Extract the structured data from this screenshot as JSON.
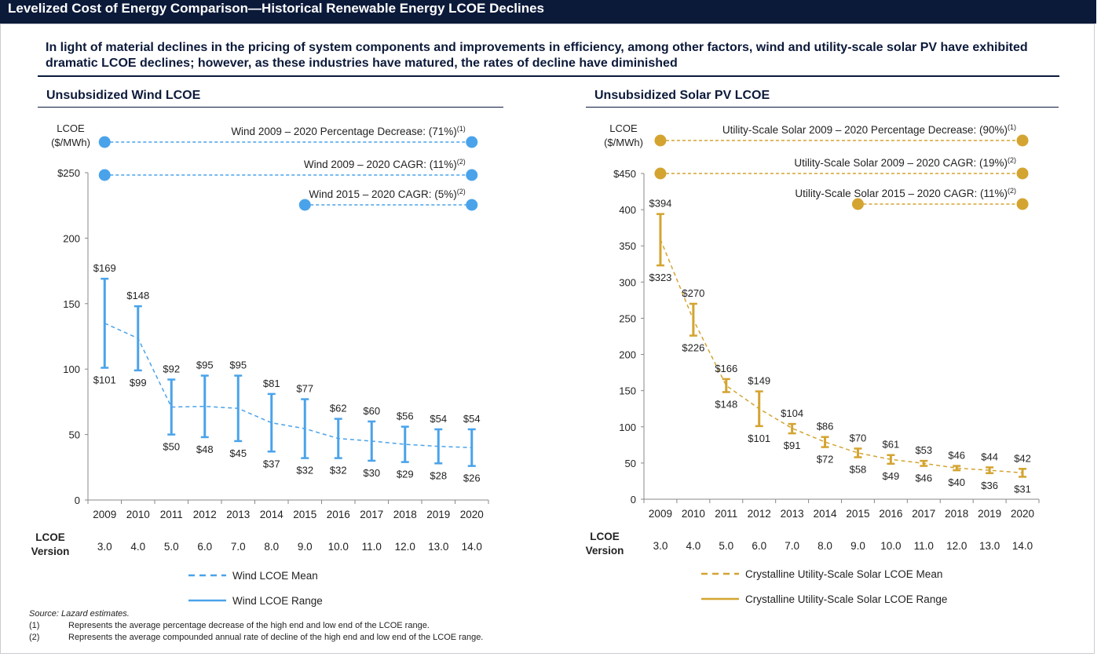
{
  "header": {
    "title": "Levelized Cost of Energy Comparison—Historical Renewable Energy LCOE Declines",
    "headline": "In light of material declines in the pricing of system components and improvements in efficiency, among other factors, wind and utility-scale solar PV have exhibited dramatic LCOE declines; however, as these industries have matured, the rates of decline have diminished"
  },
  "footnotes": {
    "source_label": "Source:",
    "source_text": "Lazard estimates.",
    "items": [
      {
        "num": "(1)",
        "text": "Represents the average percentage decrease of the high end and low end of the LCOE range."
      },
      {
        "num": "(2)",
        "text": "Represents the average compounded annual rate of decline of the high end and low end of the LCOE range."
      }
    ]
  },
  "chart_data": [
    {
      "type": "range-line",
      "section_title": "Unsubsidized Wind LCOE",
      "color": "#4aa3ea",
      "ylabel": "LCOE\n($/MWh)",
      "ylim": [
        0,
        250
      ],
      "yticks": [
        0,
        50,
        100,
        150,
        200,
        250
      ],
      "ytick_labels": [
        "0",
        "50",
        "100",
        "150",
        "200",
        "$250"
      ],
      "categories": [
        "2009",
        "2010",
        "2011",
        "2012",
        "2013",
        "2014",
        "2015",
        "2016",
        "2017",
        "2018",
        "2019",
        "2020"
      ],
      "version_label": "LCOE\nVersion",
      "versions": [
        "3.0",
        "4.0",
        "5.0",
        "6.0",
        "7.0",
        "8.0",
        "9.0",
        "10.0",
        "11.0",
        "12.0",
        "13.0",
        "14.0"
      ],
      "high": [
        169,
        148,
        92,
        95,
        95,
        81,
        77,
        62,
        60,
        56,
        54,
        54
      ],
      "low": [
        101,
        99,
        50,
        48,
        45,
        37,
        32,
        32,
        30,
        29,
        28,
        26
      ],
      "high_labels": [
        "$169",
        "$148",
        "$92",
        "$95",
        "$95",
        "$81",
        "$77",
        "$62",
        "$60",
        "$56",
        "$54",
        "$54"
      ],
      "low_labels": [
        "$101",
        "$99",
        "$50",
        "$48",
        "$45",
        "$37",
        "$32",
        "$32",
        "$30",
        "$29",
        "$28",
        "$26"
      ],
      "mean": [
        135,
        123.5,
        71,
        71.5,
        70,
        59,
        54.5,
        47,
        45,
        42.5,
        41,
        40
      ],
      "annotations": [
        {
          "text": "Wind 2009 – 2020 Percentage Decrease: (71%)",
          "sup": "(1)",
          "from": "2009",
          "to": "2020"
        },
        {
          "text": "Wind 2009 – 2020 CAGR: (11%)",
          "sup": "(2)",
          "from": "2009",
          "to": "2020"
        },
        {
          "text": "Wind 2015 – 2020 CAGR: (5%)",
          "sup": "(2)",
          "from": "2015",
          "to": "2020"
        }
      ],
      "legend": [
        {
          "style": "dashed",
          "label": "Wind LCOE Mean"
        },
        {
          "style": "solid",
          "label": "Wind LCOE Range"
        }
      ]
    },
    {
      "type": "range-line",
      "section_title": "Unsubsidized Solar PV LCOE",
      "color": "#d4a431",
      "ylabel": "LCOE\n($/MWh)",
      "ylim": [
        0,
        450
      ],
      "yticks": [
        0,
        50,
        100,
        150,
        200,
        250,
        300,
        350,
        400,
        450
      ],
      "ytick_labels": [
        "0",
        "50",
        "100",
        "150",
        "200",
        "250",
        "300",
        "350",
        "400",
        "$450"
      ],
      "categories": [
        "2009",
        "2010",
        "2011",
        "2012",
        "2013",
        "2014",
        "2015",
        "2016",
        "2017",
        "2018",
        "2019",
        "2020"
      ],
      "version_label": "LCOE\nVersion",
      "versions": [
        "3.0",
        "4.0",
        "5.0",
        "6.0",
        "7.0",
        "8.0",
        "9.0",
        "10.0",
        "11.0",
        "12.0",
        "13.0",
        "14.0"
      ],
      "high": [
        394,
        270,
        166,
        149,
        104,
        86,
        70,
        61,
        53,
        46,
        44,
        42
      ],
      "low": [
        323,
        226,
        148,
        101,
        91,
        72,
        58,
        49,
        46,
        40,
        36,
        31
      ],
      "high_labels": [
        "$394",
        "$270",
        "$166",
        "$149",
        "$104",
        "$86",
        "$70",
        "$61",
        "$53",
        "$46",
        "$44",
        "$42"
      ],
      "low_labels": [
        "$323",
        "$226",
        "$148",
        "$101",
        "$91",
        "$72",
        "$58",
        "$49",
        "$46",
        "$40",
        "$36",
        "$31"
      ],
      "mean": [
        359,
        248,
        157,
        125,
        98,
        79,
        64,
        55,
        49.5,
        43,
        40,
        36.5
      ],
      "annotations": [
        {
          "text": "Utility-Scale Solar 2009 – 2020 Percentage Decrease: (90%)",
          "sup": "(1)",
          "from": "2009",
          "to": "2020"
        },
        {
          "text": "Utility-Scale Solar 2009 – 2020 CAGR: (19%)",
          "sup": "(2)",
          "from": "2009",
          "to": "2020"
        },
        {
          "text": "Utility-Scale Solar 2015 – 2020 CAGR: (11%)",
          "sup": "(2)",
          "from": "2015",
          "to": "2020"
        }
      ],
      "legend": [
        {
          "style": "dashed",
          "label": "Crystalline Utility-Scale Solar LCOE Mean"
        },
        {
          "style": "solid",
          "label": "Crystalline Utility-Scale Solar LCOE Range"
        }
      ]
    }
  ]
}
